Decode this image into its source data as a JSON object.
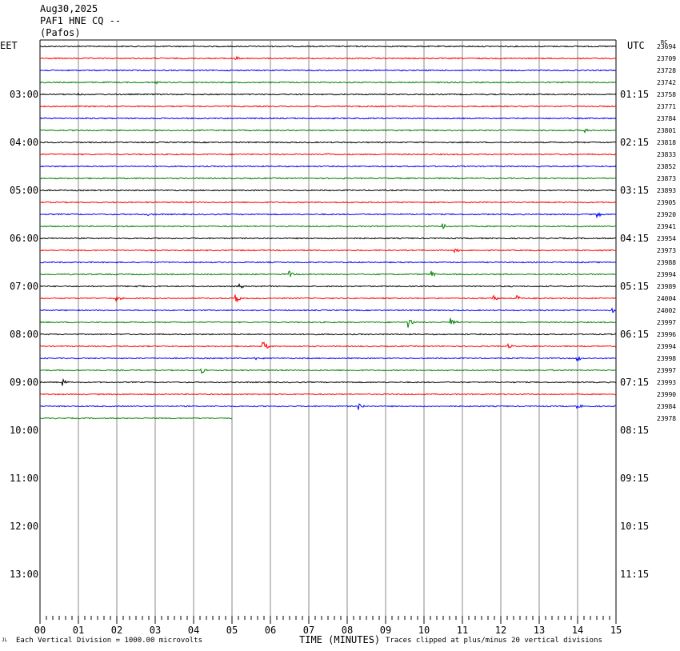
{
  "header": {
    "date": "Aug30,2025",
    "station": "PAF1 HNE CQ --",
    "location": "(Pafos)"
  },
  "chart_data": {
    "type": "line",
    "title": "PAF1 HNE CQ --",
    "left_axis_label": "EET",
    "right_axis_label": "UTC",
    "corner_label": "RC",
    "x_axis": {
      "label": "TIME (MINUTES)",
      "range": [
        0,
        15
      ],
      "tick_labels": [
        "00",
        "01",
        "02",
        "03",
        "04",
        "05",
        "06",
        "07",
        "08",
        "09",
        "10",
        "11",
        "12",
        "13",
        "14",
        "15"
      ]
    },
    "left_time_labels": [
      "03:00",
      "04:00",
      "05:00",
      "06:00",
      "07:00",
      "08:00",
      "09:00",
      "10:00",
      "11:00",
      "12:00",
      "13:00"
    ],
    "right_time_labels": [
      "01:15",
      "02:15",
      "03:15",
      "04:15",
      "05:15",
      "06:15",
      "07:15",
      "08:15",
      "09:15",
      "10:15",
      "11:15"
    ],
    "trace_colors": [
      "#000000",
      "#ff0000",
      "#0000ff",
      "#008000"
    ],
    "traces_complete": 32,
    "last_trace_minutes": 5.0,
    "trace_counts": [
      "23694",
      "23709",
      "23728",
      "23742",
      "23758",
      "23771",
      "23784",
      "23801",
      "23818",
      "23833",
      "23852",
      "23873",
      "23893",
      "23905",
      "23920",
      "23941",
      "23954",
      "23973",
      "23988",
      "23994",
      "23989",
      "24004",
      "24002",
      "23997",
      "23996",
      "23994",
      "23998",
      "23997",
      "23993",
      "23990",
      "23984",
      "23978"
    ],
    "events": [
      {
        "trace": 4,
        "minute": 1.0,
        "amp": 2
      },
      {
        "trace": 1,
        "minute": 5.1,
        "amp": 3
      },
      {
        "trace": 3,
        "minute": 3.0,
        "amp": 2
      },
      {
        "trace": 7,
        "minute": 14.2,
        "amp": 3
      },
      {
        "trace": 9,
        "minute": 7.5,
        "amp": 2
      },
      {
        "trace": 14,
        "minute": 2.8,
        "amp": 2
      },
      {
        "trace": 14,
        "minute": 14.5,
        "amp": 5
      },
      {
        "trace": 15,
        "minute": 10.5,
        "amp": 5
      },
      {
        "trace": 17,
        "minute": 10.8,
        "amp": 5
      },
      {
        "trace": 19,
        "minute": 6.5,
        "amp": 4
      },
      {
        "trace": 19,
        "minute": 10.2,
        "amp": 4
      },
      {
        "trace": 20,
        "minute": 2.5,
        "amp": 3
      },
      {
        "trace": 20,
        "minute": 5.2,
        "amp": 3
      },
      {
        "trace": 21,
        "minute": 2.0,
        "amp": 3
      },
      {
        "trace": 21,
        "minute": 5.1,
        "amp": 6
      },
      {
        "trace": 21,
        "minute": 11.8,
        "amp": 5
      },
      {
        "trace": 21,
        "minute": 12.4,
        "amp": 5
      },
      {
        "trace": 22,
        "minute": 14.9,
        "amp": 4
      },
      {
        "trace": 23,
        "minute": 9.6,
        "amp": 7
      },
      {
        "trace": 23,
        "minute": 10.7,
        "amp": 8
      },
      {
        "trace": 25,
        "minute": 5.8,
        "amp": 9
      },
      {
        "trace": 25,
        "minute": 12.2,
        "amp": 3
      },
      {
        "trace": 26,
        "minute": 5.6,
        "amp": 4
      },
      {
        "trace": 26,
        "minute": 14.0,
        "amp": 5
      },
      {
        "trace": 27,
        "minute": 4.2,
        "amp": 4
      },
      {
        "trace": 27,
        "minute": 13.2,
        "amp": 3
      },
      {
        "trace": 28,
        "minute": 0.6,
        "amp": 5
      },
      {
        "trace": 30,
        "minute": 8.3,
        "amp": 5
      },
      {
        "trace": 30,
        "minute": 14.0,
        "amp": 3
      }
    ]
  },
  "footer": {
    "vertical_division": "Each Vertical Division = 1000.00 microvolts",
    "clip_note": "Traces clipped at plus/minus 20 vertical divisions",
    "mark": "JL"
  }
}
